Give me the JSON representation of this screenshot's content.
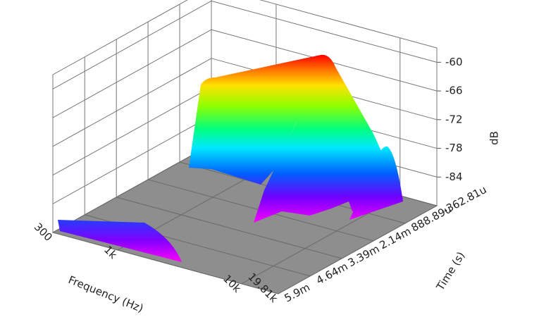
{
  "chart_data": {
    "type": "waterfall3d",
    "x_label": "Frequency (Hz)",
    "y_label": "Time (s)",
    "z_label": "dB",
    "x_log": true,
    "xlim": [
      300,
      19810
    ],
    "xticks": [
      300,
      {
        "value": 1000,
        "label": "1k"
      },
      {
        "value": 10000,
        "label": "10k"
      },
      {
        "value": 19810,
        "label": "19.81k"
      }
    ],
    "ylim": [
      -0.00036281,
      0.0059
    ],
    "yticks": [
      {
        "value": -0.00036281,
        "label": "-362.81u"
      },
      {
        "value": 0.00088889,
        "label": "888.89u"
      },
      {
        "value": 0.00214,
        "label": "2.14m"
      },
      {
        "value": 0.00339,
        "label": "3.39m"
      },
      {
        "value": 0.00464,
        "label": "4.64m"
      },
      {
        "value": 0.0059,
        "label": "5.9m"
      }
    ],
    "zlim": [
      -90,
      -57
    ],
    "zticks": [
      -60,
      -66,
      -72,
      -78,
      -84
    ],
    "grid": true
  }
}
